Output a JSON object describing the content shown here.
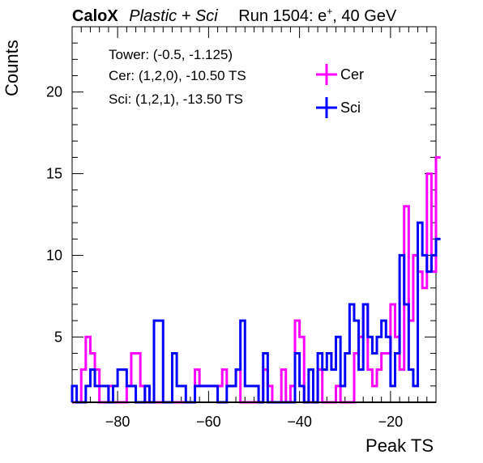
{
  "header": {
    "brand": "CaloX",
    "subtitle": "Plastic + Sci",
    "run_info": "Run 1504: e",
    "run_sup": "+",
    "run_energy": ", 40 GeV"
  },
  "info": {
    "line1": "Tower: (-0.5, -1.125)",
    "line2": "Cer: (1,2,0), -10.50 TS",
    "line3": "Sci: (1,2,1), -13.50 TS"
  },
  "colors": {
    "cer": "#ff00ff",
    "sci": "#0000ff"
  },
  "chart_data": {
    "type": "histogram",
    "xlabel": "Peak TS",
    "ylabel": "Counts",
    "xlim": [
      -90,
      -10
    ],
    "ylim": [
      1,
      24
    ],
    "bin_width": 1,
    "bin_start": -90,
    "xticks": [
      -80,
      -60,
      -40,
      -20
    ],
    "yticks": [
      5,
      10,
      15,
      20
    ],
    "xtick_labels": [
      "−80",
      "−60",
      "−40",
      "−20"
    ],
    "ytick_labels": [
      "5",
      "10",
      "15",
      "20"
    ],
    "legend": [
      {
        "name": "Cer",
        "color": "#ff00ff"
      },
      {
        "name": "Sci",
        "color": "#0000ff"
      }
    ],
    "series": [
      {
        "name": "Cer",
        "color": "#ff00ff",
        "values": [
          1,
          1,
          3,
          5,
          4,
          3,
          1,
          1,
          2,
          1,
          1,
          1,
          2,
          4,
          4,
          2,
          1,
          1,
          1,
          1,
          1,
          1,
          1,
          1,
          1,
          1,
          1,
          3,
          2,
          2,
          2,
          2,
          2,
          3,
          2,
          2,
          3,
          1,
          1,
          1,
          1,
          1,
          3,
          2,
          1,
          1,
          3,
          1,
          2,
          6,
          5,
          1,
          1,
          1,
          3,
          1,
          1,
          1,
          2,
          1,
          1,
          1,
          4,
          5,
          7,
          3,
          2,
          3,
          4,
          4,
          7,
          5,
          3,
          13,
          6,
          10,
          9,
          8,
          15,
          9,
          16
        ]
      },
      {
        "name": "Sci",
        "color": "#0000ff",
        "values": [
          2,
          1,
          1,
          2,
          3,
          2,
          2,
          2,
          1,
          2,
          3,
          3,
          2,
          2,
          1,
          1,
          2,
          1,
          6,
          6,
          1,
          1,
          4,
          2,
          2,
          1,
          1,
          2,
          2,
          2,
          2,
          2,
          1,
          1,
          2,
          2,
          3,
          6,
          2,
          2,
          2,
          1,
          4,
          1,
          1,
          1,
          1,
          1,
          1,
          4,
          2,
          1,
          3,
          1,
          4,
          3,
          4,
          3,
          5,
          2,
          4,
          7,
          6,
          3,
          7,
          5,
          4,
          5,
          6,
          5,
          2,
          4,
          10,
          7,
          3,
          2,
          12,
          10,
          9,
          10,
          11
        ]
      }
    ]
  }
}
